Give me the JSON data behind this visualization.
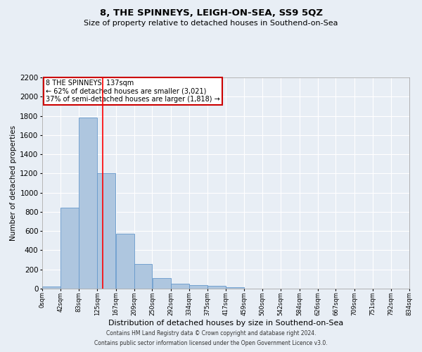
{
  "title": "8, THE SPINNEYS, LEIGH-ON-SEA, SS9 5QZ",
  "subtitle": "Size of property relative to detached houses in Southend-on-Sea",
  "xlabel": "Distribution of detached houses by size in Southend-on-Sea",
  "ylabel": "Number of detached properties",
  "footer_line1": "Contains HM Land Registry data © Crown copyright and database right 2024.",
  "footer_line2": "Contains public sector information licensed under the Open Government Licence v3.0.",
  "annotation_line1": "8 THE SPINNEYS: 137sqm",
  "annotation_line2": "← 62% of detached houses are smaller (3,021)",
  "annotation_line3": "37% of semi-detached houses are larger (1,818) →",
  "property_size": 137,
  "bar_values": [
    25,
    840,
    1780,
    1200,
    570,
    260,
    110,
    50,
    40,
    30,
    15,
    0,
    0,
    0,
    0,
    0,
    0,
    0,
    0,
    0
  ],
  "bin_edges": [
    0,
    42,
    83,
    125,
    167,
    209,
    250,
    292,
    334,
    375,
    417,
    459,
    500,
    542,
    584,
    626,
    667,
    709,
    751,
    792,
    834
  ],
  "tick_labels": [
    "0sqm",
    "42sqm",
    "83sqm",
    "125sqm",
    "167sqm",
    "209sqm",
    "250sqm",
    "292sqm",
    "334sqm",
    "375sqm",
    "417sqm",
    "459sqm",
    "500sqm",
    "542sqm",
    "584sqm",
    "626sqm",
    "667sqm",
    "709sqm",
    "751sqm",
    "792sqm",
    "834sqm"
  ],
  "ylim": [
    0,
    2200
  ],
  "yticks": [
    0,
    200,
    400,
    600,
    800,
    1000,
    1200,
    1400,
    1600,
    1800,
    2000,
    2200
  ],
  "bar_color": "#aec6df",
  "bar_edge_color": "#6699cc",
  "redline_x": 137,
  "background_color": "#e8eef5",
  "grid_color": "#ffffff",
  "annotation_box_color": "#ffffff",
  "annotation_box_edge": "#cc0000",
  "title_fontsize": 9.5,
  "subtitle_fontsize": 8,
  "ylabel_fontsize": 7.5,
  "xlabel_fontsize": 8,
  "ytick_fontsize": 7.5,
  "xtick_fontsize": 6,
  "footer_fontsize": 5.5,
  "annotation_fontsize": 7
}
